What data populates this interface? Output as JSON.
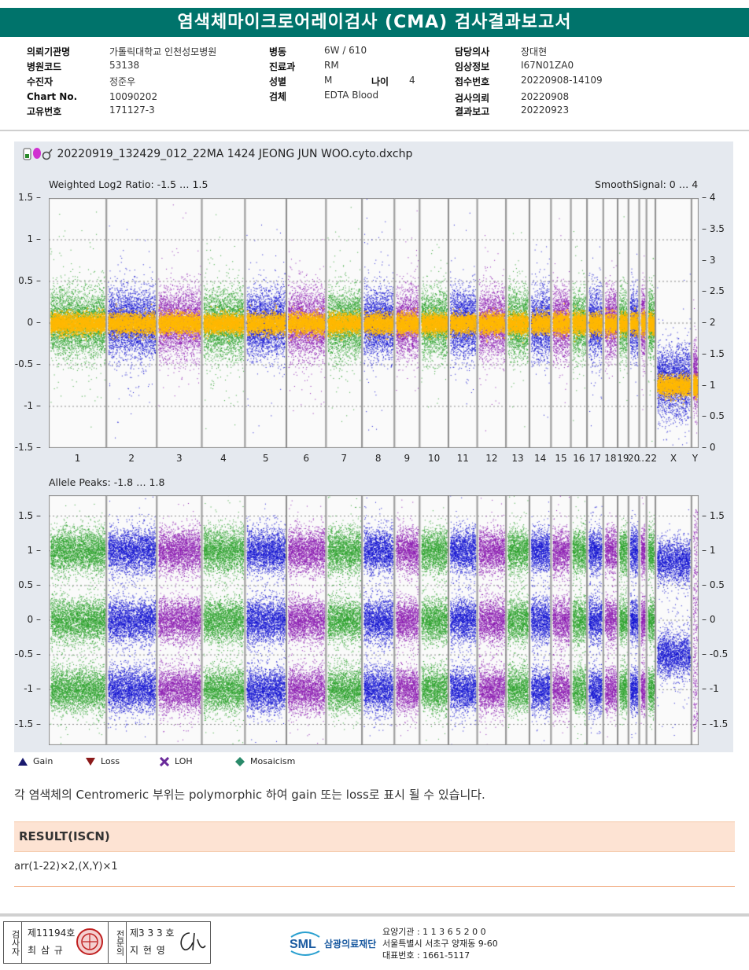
{
  "report": {
    "title": "염색체마이크로어레이검사 (CMA) 검사결과보고서"
  },
  "patient": {
    "institution_label": "의뢰기관명",
    "institution": "가톨릭대학교 인천성모병원",
    "hospital_code_label": "병원코드",
    "hospital_code": "53138",
    "examinee_label": "수진자",
    "examinee": "정준우",
    "chart_label": "Chart No.",
    "chart_no": "10090202",
    "unique_label": "고유번호",
    "unique_no": "171127-3",
    "ward_label": "병동",
    "ward": "6W / 610",
    "dept_label": "진료과",
    "dept": "RM",
    "sex_label": "성별",
    "sex": "M",
    "age_label": "나이",
    "age": "4",
    "specimen_label": "검체",
    "specimen": "EDTA Blood",
    "doctor_label": "담당의사",
    "doctor": "장대현",
    "clinical_label": "임상정보",
    "clinical": "I67N01ZA0",
    "receipt_label": "접수번호",
    "receipt": "20220908-14109",
    "request_label": "검사의뢰",
    "request_date": "20220908",
    "report_label": "결과보고",
    "report_date": "20220923"
  },
  "chart": {
    "file_title": "20220919_132429_012_22MA 1424 JEONG JUN WOO.cyto.dxchp",
    "top_label": "Weighted Log2 Ratio: -1.5 … 1.5",
    "smooth_label": "SmoothSignal: 0 … 4",
    "bottom_label": "Allele Peaks: -1.8 … 1.8"
  },
  "chart_data": [
    {
      "type": "scatter",
      "title": "Weighted Log2 Ratio: -1.5 … 1.5",
      "secondary_title": "SmoothSignal: 0 … 4",
      "categories": [
        "1",
        "2",
        "3",
        "4",
        "5",
        "6",
        "7",
        "8",
        "9",
        "10",
        "11",
        "12",
        "13",
        "14",
        "15",
        "16",
        "17",
        "18",
        "19",
        "20",
        "21",
        "22",
        "X",
        "Y"
      ],
      "tick_labels": [
        "1",
        "2",
        "3",
        "4",
        "5",
        "6",
        "7",
        "8",
        "9",
        "10",
        "11",
        "12",
        "13",
        "14",
        "15",
        "16",
        "17",
        "18",
        "19",
        "20",
        "…",
        "22",
        "X",
        "Y"
      ],
      "ylim": [
        -1.5,
        1.5
      ],
      "yticks": [
        "1.5",
        "1",
        "0.5",
        "0",
        "-0.5",
        "-1",
        "-1.5"
      ],
      "y2lim": [
        0,
        4
      ],
      "y2ticks": [
        "4",
        "3.5",
        "3",
        "2.5",
        "2",
        "1.5",
        "1",
        "0.5",
        "0"
      ],
      "log2_ratio_center": [
        0,
        0,
        0,
        0,
        0,
        0,
        0,
        0,
        0,
        0,
        0,
        0,
        0,
        0,
        0,
        0,
        0,
        0,
        0,
        0,
        0,
        0,
        -0.7,
        -0.65
      ],
      "smooth_signal": [
        2,
        2,
        2,
        2,
        2,
        2,
        2,
        2,
        2,
        2,
        2,
        2,
        2,
        2,
        2,
        2,
        2,
        2,
        2,
        2,
        2,
        2,
        1,
        1
      ]
    },
    {
      "type": "scatter",
      "title": "Allele Peaks: -1.8 … 1.8",
      "ylim": [
        -1.8,
        1.8
      ],
      "yticks": [
        "1.5",
        "1",
        "0.5",
        "0",
        "-0.5",
        "-1",
        "-1.5"
      ],
      "y2ticks": [
        "1.5",
        "1",
        "0.5",
        "0",
        "-0.5",
        "-1",
        "-1.5"
      ],
      "autosome_peaks": [
        1.0,
        0.0,
        -1.0
      ],
      "x_peaks": [
        0.85,
        -0.5
      ]
    }
  ],
  "legend": {
    "gain": "Gain",
    "loss": "Loss",
    "loh": "LOH",
    "mosaicism": "Mosaicism",
    "colors": {
      "gain": "#1a1a6e",
      "loss": "#8b1a1a",
      "loh": "#6a2a9a",
      "mosaicism": "#2a8a6a"
    }
  },
  "note": "각 염색체의 Centromeric 부위는 polymorphic 하여 gain 또는 loss로 표시 될 수 있습니다.",
  "result": {
    "title": "RESULT(ISCN)",
    "value": "arr(1-22)×2,(X,Y)×1"
  },
  "footer": {
    "role_label": "검사자",
    "examiner_no": "제11194호",
    "examiner_name": "최 삼 규",
    "specialist_label": "전문의",
    "specialist_no": "제3 3 3 호",
    "specialist_name": "지 현 영",
    "org_logo": "SML",
    "org_name": "삼광의료재단",
    "code_line": "요양기관 : 1 1 3 6 5 2 0 0",
    "address": "서울특별시 서초구 양재동 9-60",
    "phone": "대표번호 : 1661-5117"
  }
}
